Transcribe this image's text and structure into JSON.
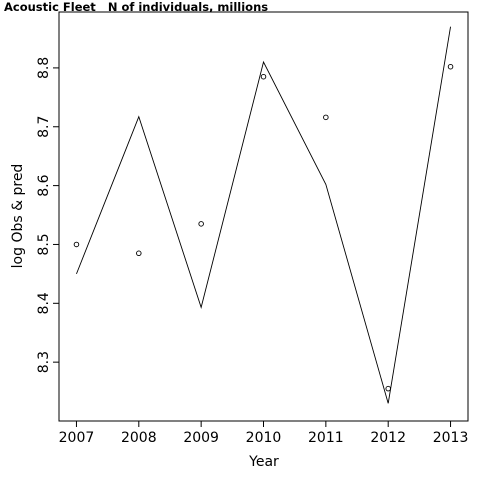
{
  "chart_data": {
    "type": "scatter",
    "title": "Acoustic Fleet   N of individuals, millions",
    "xlabel": "Year",
    "ylabel": "log Obs & pred",
    "x": [
      2007,
      2008,
      2009,
      2010,
      2011,
      2012,
      2013
    ],
    "xlim": [
      2006.72,
      2013.28
    ],
    "ylim": [
      8.2,
      8.895
    ],
    "x_ticks": [
      2007,
      2008,
      2009,
      2010,
      2011,
      2012,
      2013
    ],
    "y_ticks": [
      8.3,
      8.4,
      8.5,
      8.6,
      8.7,
      8.8
    ],
    "x_tick_labels": [
      "2007",
      "2008",
      "2009",
      "2010",
      "2011",
      "2012",
      "2013"
    ],
    "y_tick_labels": [
      "8.3",
      "8.4",
      "8.5",
      "8.6",
      "8.7",
      "8.8"
    ],
    "grid": false,
    "series": [
      {
        "style": "points",
        "values": [
          8.5,
          8.485,
          8.535,
          8.785,
          8.716,
          8.255,
          8.802
        ]
      },
      {
        "style": "line",
        "values": [
          8.45,
          8.717,
          8.393,
          8.81,
          8.602,
          8.23,
          8.87
        ]
      }
    ]
  }
}
